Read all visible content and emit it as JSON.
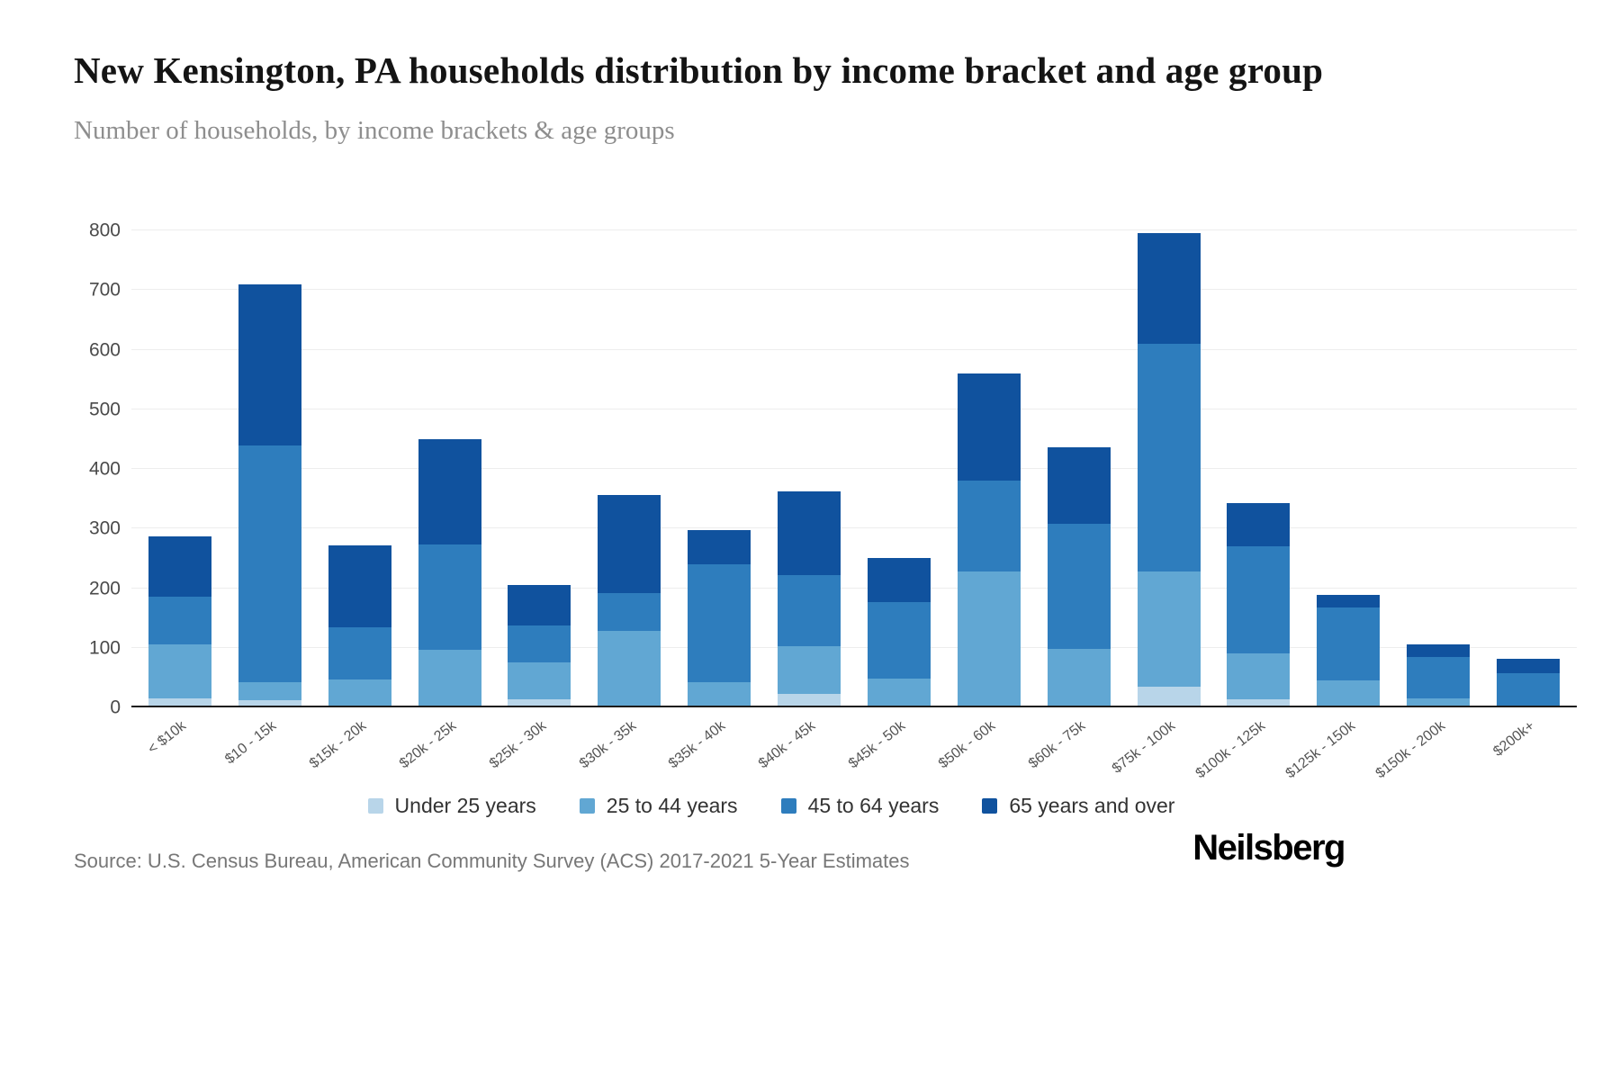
{
  "chart_data": {
    "type": "bar",
    "stacked": true,
    "title": "New Kensington, PA households distribution by income bracket and age group",
    "subtitle": "Number of households, by income brackets & age groups",
    "xlabel": "",
    "ylabel": "",
    "ylim": [
      0,
      800
    ],
    "ytick_step": 100,
    "grid": "horizontal",
    "legend_position": "bottom",
    "categories": [
      "< $10k",
      "$10 - 15k",
      "$15k - 20k",
      "$20k - 25k",
      "$25k - 30k",
      "$30k - 35k",
      "$35k - 40k",
      "$40k - 45k",
      "$45k - 50k",
      "$50k - 60k",
      "$60k - 75k",
      "$75k - 100k",
      "$100k - 125k",
      "$125k - 150k",
      "$150k - 200k",
      "$200k+"
    ],
    "series": [
      {
        "name": "Under 25 years",
        "color": "#b8d5e9",
        "values": [
          15,
          12,
          0,
          0,
          13,
          0,
          0,
          22,
          0,
          0,
          0,
          35,
          13,
          0,
          0,
          0
        ]
      },
      {
        "name": "25 to 44 years",
        "color": "#61a7d3",
        "values": [
          90,
          30,
          47,
          97,
          62,
          128,
          43,
          81,
          48,
          228,
          98,
          193,
          77,
          45,
          15,
          0
        ]
      },
      {
        "name": "45 to 64 years",
        "color": "#2e7dbd",
        "values": [
          80,
          398,
          88,
          176,
          62,
          64,
          197,
          119,
          129,
          152,
          210,
          382,
          180,
          123,
          70,
          57
        ]
      },
      {
        "name": "65 years and over",
        "color": "#10529e",
        "values": [
          102,
          270,
          136,
          177,
          69,
          165,
          58,
          140,
          74,
          180,
          129,
          185,
          72,
          21,
          20,
          25
        ]
      }
    ]
  },
  "footer": {
    "source": "Source: U.S. Census Bureau, American Community Survey (ACS) 2017-2021 5-Year Estimates",
    "logo": "Neilsberg"
  }
}
